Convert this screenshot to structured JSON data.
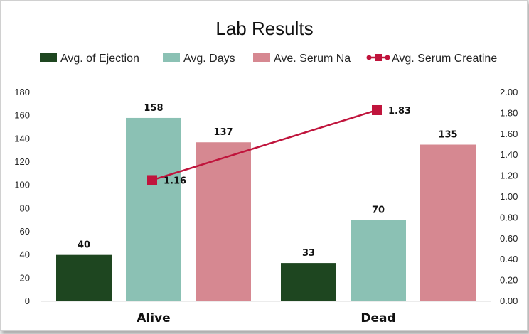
{
  "chart_data": {
    "type": "bar",
    "title": "Lab Results",
    "categories": [
      "Alive",
      "Dead"
    ],
    "series": [
      {
        "name": "Avg. of Ejection",
        "type": "bar",
        "axis": "left",
        "color": "#1e4620",
        "values": [
          40,
          33
        ]
      },
      {
        "name": "Avg. Days",
        "type": "bar",
        "axis": "left",
        "color": "#8bc1b4",
        "values": [
          158,
          70
        ]
      },
      {
        "name": "Ave. Serum Na",
        "type": "bar",
        "axis": "left",
        "color": "#d68891",
        "values": [
          137,
          135
        ]
      },
      {
        "name": "Avg. Serum Creatine",
        "type": "line",
        "axis": "right",
        "color": "#c0143c",
        "marker": "square",
        "values": [
          1.16,
          1.83
        ]
      }
    ],
    "left_axis": {
      "min": 0,
      "max": 180,
      "step": 20,
      "ticks": [
        "0",
        "20",
        "40",
        "60",
        "80",
        "100",
        "120",
        "140",
        "160",
        "180"
      ]
    },
    "right_axis": {
      "min": 0,
      "max": 2.0,
      "step": 0.2,
      "ticks": [
        "0.00",
        "0.20",
        "0.40",
        "0.60",
        "0.80",
        "1.00",
        "1.20",
        "1.40",
        "1.60",
        "1.80",
        "2.00"
      ]
    },
    "data_labels": {
      "Avg. of Ejection": [
        "40",
        "33"
      ],
      "Avg. Days": [
        "158",
        "70"
      ],
      "Ave. Serum Na": [
        "137",
        "135"
      ],
      "Avg. Serum Creatine": [
        "1.16",
        "1.83"
      ]
    },
    "legend_position": "top",
    "grid": false
  }
}
